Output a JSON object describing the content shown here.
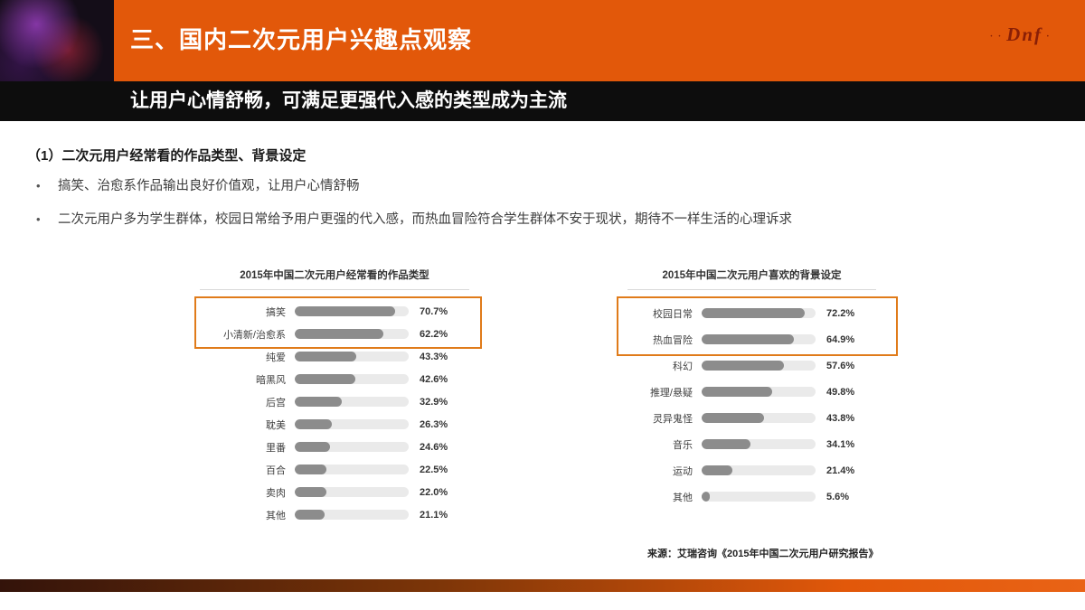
{
  "header": {
    "section_title": "三、国内二次元用户兴趣点观察",
    "logo_text": "Dnf",
    "accent_color": "#E2580A"
  },
  "subtitle_bar": {
    "text": "让用户心情舒畅，可满足更强代入感的类型成为主流"
  },
  "body": {
    "heading": "（1）二次元用户经常看的作品类型、背景设定",
    "bullets": [
      "搞笑、治愈系作品输出良好价值观，让用户心情舒畅",
      "二次元用户多为学生群体，校园日常给予用户更强的代入感，而热血冒险符合学生群体不安于现状，期待不一样生活的心理诉求"
    ],
    "source": "来源：艾瑞咨询《2015年中国二次元用户研究报告》"
  },
  "chart_data": [
    {
      "type": "bar",
      "orientation": "horizontal",
      "title": "2015年中国二次元用户经常看的作品类型",
      "categories": [
        "搞笑",
        "小清新/治愈系",
        "纯爱",
        "暗黑风",
        "后宫",
        "耽美",
        "里番",
        "百合",
        "卖肉",
        "其他"
      ],
      "values": [
        70.7,
        62.2,
        43.3,
        42.6,
        32.9,
        26.3,
        24.6,
        22.5,
        22.0,
        21.1
      ],
      "unit": "%",
      "xlim": [
        0,
        80
      ],
      "grid": false,
      "legend": "none",
      "bar_color": "#8c8c8c",
      "track_color": "#eaeaea",
      "highlighted_rows": [
        0,
        1
      ],
      "highlight_box_color": "#E07B1A"
    },
    {
      "type": "bar",
      "orientation": "horizontal",
      "title": "2015年中国二次元用户喜欢的背景设定",
      "categories": [
        "校园日常",
        "热血冒险",
        "科幻",
        "推理/悬疑",
        "灵异鬼怪",
        "音乐",
        "运动",
        "其他"
      ],
      "values": [
        72.2,
        64.9,
        57.6,
        49.8,
        43.8,
        34.1,
        21.4,
        5.6
      ],
      "unit": "%",
      "xlim": [
        0,
        80
      ],
      "grid": false,
      "legend": "none",
      "bar_color": "#8c8c8c",
      "track_color": "#eaeaea",
      "highlighted_rows": [
        0,
        1
      ],
      "highlight_box_color": "#E07B1A"
    }
  ]
}
